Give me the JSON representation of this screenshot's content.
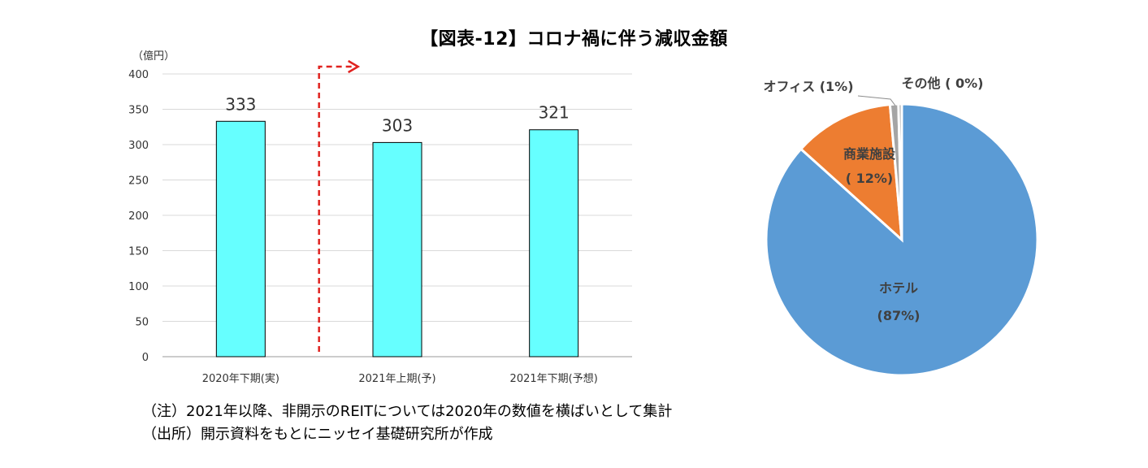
{
  "title": "【図表-12】コロナ禍に伴う減収金額",
  "notes": [
    "（注）2021年以降、非開示のREITについては2020年の数値を横ばいとして集計",
    "（出所）開示資料をもとにニッセイ基礎研究所が作成"
  ],
  "colors": {
    "bar": "#66ffff",
    "arrow": "#e0221f",
    "hotel": "#5b9bd5",
    "commercial": "#ed7d31",
    "office": "#a5a5a5",
    "other": "#a5a5a5"
  },
  "chart_data": [
    {
      "type": "bar",
      "title": "",
      "ylabel": "（億円）",
      "xlabel": "",
      "categories": [
        "2020年下期(実)",
        "2021年上期(予)",
        "2021年下期(予想)"
      ],
      "values": [
        333,
        303,
        321
      ],
      "data_labels": [
        "333",
        "303",
        "321"
      ],
      "ylim": [
        0,
        400
      ],
      "yticks": [
        "0",
        "50",
        "100",
        "150",
        "200",
        "250",
        "300",
        "350",
        "400"
      ],
      "grid": true,
      "annotation": "dashed red arrow between 2020年下期(実) and 2021年上期(予) pointing right"
    },
    {
      "type": "pie",
      "slices": [
        {
          "name": "ホテル",
          "label": "(87%)",
          "value": 87
        },
        {
          "name": "商業施設",
          "label": "( 12%)",
          "value": 12
        },
        {
          "name": "オフィス",
          "label": "(1%)",
          "value": 1
        },
        {
          "name": "その他",
          "label": "( 0%)",
          "value": 0.4
        }
      ]
    }
  ]
}
